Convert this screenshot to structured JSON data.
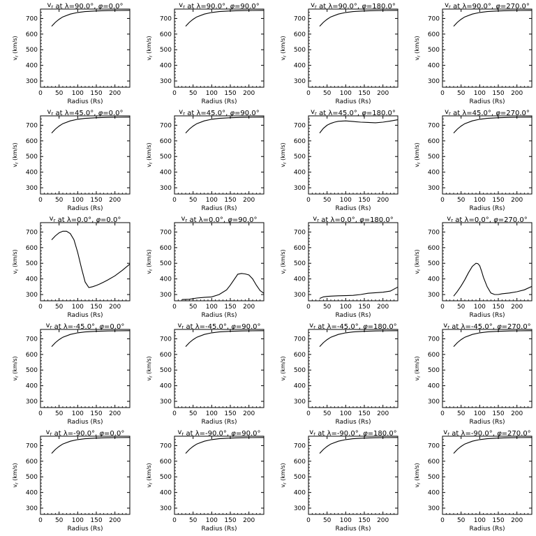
{
  "common": {
    "xlabel": "Radius (Rs)",
    "ylabel": "v  (km/s)",
    "ylabel_sub": "r",
    "xlim": [
      0,
      240
    ],
    "ylim": [
      260,
      760
    ],
    "xticks": [
      0,
      50,
      100,
      150,
      200
    ],
    "yticks": [
      300,
      400,
      500,
      600,
      700
    ],
    "line_color": "#000000"
  },
  "chart_data": [
    {
      "type": "line",
      "title_lat": "90.0",
      "title_lon": "0.0",
      "x": [
        30,
        40,
        50,
        60,
        80,
        100,
        120,
        150,
        180,
        210,
        240
      ],
      "y": [
        650,
        675,
        695,
        710,
        728,
        738,
        744,
        748,
        750,
        751,
        752
      ]
    },
    {
      "type": "line",
      "title_lat": "90.0",
      "title_lon": "90.0",
      "x": [
        30,
        40,
        50,
        60,
        80,
        100,
        120,
        150,
        180,
        210,
        240
      ],
      "y": [
        650,
        675,
        695,
        710,
        728,
        738,
        744,
        748,
        750,
        751,
        752
      ]
    },
    {
      "type": "line",
      "title_lat": "90.0",
      "title_lon": "180.0",
      "x": [
        30,
        40,
        50,
        60,
        80,
        100,
        120,
        150,
        180,
        210,
        240
      ],
      "y": [
        650,
        675,
        695,
        710,
        728,
        738,
        744,
        748,
        750,
        751,
        752
      ]
    },
    {
      "type": "line",
      "title_lat": "90.0",
      "title_lon": "270.0",
      "x": [
        30,
        40,
        50,
        60,
        80,
        100,
        120,
        150,
        180,
        210,
        240
      ],
      "y": [
        650,
        675,
        695,
        710,
        728,
        738,
        744,
        748,
        750,
        751,
        752
      ]
    },
    {
      "type": "line",
      "title_lat": "45.0",
      "title_lon": "0.0",
      "x": [
        30,
        40,
        50,
        60,
        80,
        100,
        120,
        150,
        180,
        210,
        240
      ],
      "y": [
        650,
        675,
        695,
        710,
        728,
        738,
        744,
        748,
        750,
        751,
        752
      ]
    },
    {
      "type": "line",
      "title_lat": "45.0",
      "title_lon": "90.0",
      "x": [
        30,
        40,
        50,
        60,
        80,
        100,
        120,
        150,
        180,
        210,
        240
      ],
      "y": [
        650,
        675,
        695,
        710,
        728,
        738,
        744,
        748,
        750,
        751,
        752
      ]
    },
    {
      "type": "line",
      "title_lat": "45.0",
      "title_lon": "180.0",
      "x": [
        30,
        40,
        50,
        60,
        70,
        80,
        100,
        120,
        140,
        160,
        180,
        200,
        220,
        240
      ],
      "y": [
        650,
        680,
        700,
        712,
        720,
        725,
        728,
        724,
        720,
        718,
        716,
        720,
        727,
        735
      ]
    },
    {
      "type": "line",
      "title_lat": "45.0",
      "title_lon": "270.0",
      "x": [
        30,
        40,
        50,
        60,
        80,
        100,
        120,
        150,
        180,
        210,
        240
      ],
      "y": [
        650,
        675,
        695,
        710,
        728,
        738,
        744,
        748,
        750,
        751,
        752
      ]
    },
    {
      "type": "line",
      "title_lat": "0.0",
      "title_lon": "0.0",
      "x": [
        30,
        40,
        50,
        60,
        70,
        80,
        90,
        100,
        110,
        120,
        130,
        140,
        150,
        160,
        170,
        180,
        200,
        220,
        240
      ],
      "y": [
        650,
        675,
        695,
        705,
        705,
        690,
        650,
        570,
        470,
        380,
        345,
        350,
        358,
        368,
        380,
        392,
        420,
        455,
        495
      ]
    },
    {
      "type": "line",
      "title_lat": "0.0",
      "title_lon": "90.0",
      "x": [
        20,
        40,
        60,
        80,
        100,
        120,
        140,
        150,
        160,
        170,
        180,
        190,
        200,
        210,
        220,
        230,
        240
      ],
      "y": [
        268,
        270,
        278,
        282,
        285,
        300,
        330,
        360,
        395,
        430,
        435,
        432,
        425,
        400,
        360,
        325,
        308
      ]
    },
    {
      "type": "line",
      "title_lat": "0.0",
      "title_lon": "180.0",
      "x": [
        30,
        40,
        50,
        60,
        80,
        100,
        120,
        140,
        160,
        180,
        200,
        220,
        230,
        240
      ],
      "y": [
        275,
        285,
        288,
        290,
        292,
        293,
        295,
        300,
        308,
        312,
        315,
        322,
        335,
        348
      ]
    },
    {
      "type": "line",
      "title_lat": "0.0",
      "title_lon": "270.0",
      "x": [
        30,
        40,
        50,
        60,
        70,
        80,
        90,
        95,
        100,
        105,
        110,
        120,
        130,
        140,
        150,
        160,
        180,
        200,
        220,
        240
      ],
      "y": [
        290,
        320,
        355,
        395,
        440,
        480,
        500,
        498,
        485,
        450,
        410,
        350,
        310,
        300,
        300,
        305,
        310,
        318,
        330,
        352
      ]
    },
    {
      "type": "line",
      "title_lat": "-45.0",
      "title_lon": "0.0",
      "x": [
        30,
        40,
        50,
        60,
        80,
        100,
        120,
        150,
        180,
        210,
        240
      ],
      "y": [
        650,
        675,
        695,
        710,
        728,
        738,
        744,
        748,
        750,
        751,
        752
      ]
    },
    {
      "type": "line",
      "title_lat": "-45.0",
      "title_lon": "90.0",
      "x": [
        30,
        40,
        50,
        60,
        80,
        100,
        120,
        150,
        180,
        210,
        240
      ],
      "y": [
        650,
        675,
        695,
        710,
        728,
        738,
        744,
        748,
        750,
        751,
        752
      ]
    },
    {
      "type": "line",
      "title_lat": "-45.0",
      "title_lon": "180.0",
      "x": [
        30,
        40,
        50,
        60,
        80,
        100,
        120,
        150,
        180,
        210,
        240
      ],
      "y": [
        650,
        675,
        695,
        710,
        728,
        738,
        744,
        748,
        750,
        751,
        752
      ]
    },
    {
      "type": "line",
      "title_lat": "-45.0",
      "title_lon": "270.0",
      "x": [
        30,
        40,
        50,
        60,
        80,
        100,
        120,
        150,
        180,
        210,
        240
      ],
      "y": [
        650,
        675,
        695,
        710,
        728,
        738,
        744,
        748,
        750,
        751,
        752
      ]
    },
    {
      "type": "line",
      "title_lat": "-90.0",
      "title_lon": "0.0",
      "x": [
        30,
        40,
        50,
        60,
        80,
        100,
        120,
        150,
        180,
        210,
        240
      ],
      "y": [
        650,
        675,
        695,
        710,
        728,
        738,
        744,
        748,
        750,
        751,
        752
      ]
    },
    {
      "type": "line",
      "title_lat": "-90.0",
      "title_lon": "90.0",
      "x": [
        30,
        40,
        50,
        60,
        80,
        100,
        120,
        150,
        180,
        210,
        240
      ],
      "y": [
        650,
        675,
        695,
        710,
        728,
        738,
        744,
        748,
        750,
        751,
        752
      ]
    },
    {
      "type": "line",
      "title_lat": "-90.0",
      "title_lon": "180.0",
      "x": [
        30,
        40,
        50,
        60,
        80,
        100,
        120,
        150,
        180,
        210,
        240
      ],
      "y": [
        650,
        675,
        695,
        710,
        728,
        738,
        744,
        748,
        750,
        751,
        752
      ]
    },
    {
      "type": "line",
      "title_lat": "-90.0",
      "title_lon": "270.0",
      "x": [
        30,
        40,
        50,
        60,
        80,
        100,
        120,
        150,
        180,
        210,
        240
      ],
      "y": [
        650,
        675,
        695,
        710,
        728,
        738,
        744,
        748,
        750,
        751,
        752
      ]
    }
  ]
}
